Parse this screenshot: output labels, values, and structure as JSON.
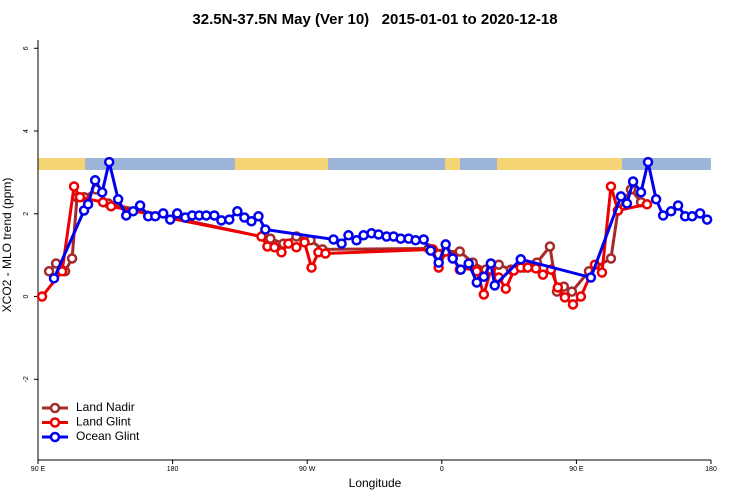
{
  "chart_data": {
    "type": "line",
    "title": "32.5N-37.5N May (Ver 10)   2015-01-01 to 2020-12-18",
    "xlabel": "Longitude",
    "ylabel": "XCO2 - MLO trend (ppm)",
    "xlim": [
      90,
      540
    ],
    "ylim": [
      -3.95,
      6.2
    ],
    "xticks": [
      {
        "value": 90,
        "label": "90 E"
      },
      180,
      {
        "value": 270,
        "label": "90 W"
      },
      {
        "value": 360,
        "label": "0"
      },
      {
        "value": 450,
        "label": "90 E"
      },
      {
        "value": 540,
        "label": "180"
      }
    ],
    "yticks": [
      -2,
      0,
      2,
      4,
      6
    ],
    "legend": "lower left",
    "series": [
      {
        "name": "Land Nadir",
        "color": "#a52a2a",
        "x": [
          97.4,
          102.1,
          108.1,
          112.8,
          116.1,
          120.8,
          128.8,
          137,
          245.4,
          254.1,
          262.8,
          272.2,
          280.2,
          351.2,
          362.6,
          372,
          380.7,
          389.4,
          398.1,
          406.2,
          414.9,
          423.6,
          432.3,
          437,
          441.6,
          447,
          458.4,
          473.1,
          477.8,
          486.5,
          493.2
        ],
        "values": [
          0.61,
          0.8,
          0.61,
          0.92,
          2.4,
          2.4,
          2.59,
          2.25,
          1.4,
          1.28,
          1.45,
          1.36,
          1.14,
          1.16,
          1.09,
          1.09,
          0.82,
          0.65,
          0.77,
          0.65,
          0.7,
          0.82,
          1.21,
          0.12,
          0.24,
          0.12,
          0.61,
          0.92,
          2.08,
          2.59,
          2.28
        ]
      },
      {
        "name": "Land Glint",
        "color": "#ee0000",
        "x": [
          92.7,
          106.1,
          114.1,
          118.1,
          133.5,
          138.9,
          239.4,
          243.4,
          248.1,
          252.8,
          257.4,
          262.8,
          268.2,
          272.9,
          277.5,
          282.2,
          353.9,
          357.9,
          362.6,
          367.3,
          372,
          378,
          383.4,
          388.1,
          392.8,
          398.1,
          402.8,
          408.2,
          412.8,
          417.5,
          422.9,
          427.6,
          433,
          437.6,
          442.3,
          447.7,
          453,
          462.4,
          467.1,
          473.1,
          477.8,
          497.2
        ],
        "values": [
          0,
          0.61,
          2.66,
          2.4,
          2.28,
          2.18,
          1.45,
          1.21,
          1.19,
          1.07,
          1.28,
          1.19,
          1.31,
          0.7,
          1.07,
          1.04,
          1.14,
          0.7,
          1.09,
          0.94,
          0.65,
          0.75,
          0.61,
          0.05,
          0.65,
          0.46,
          0.19,
          0.63,
          0.7,
          0.7,
          0.68,
          0.53,
          0.65,
          0.22,
          -0.02,
          -0.19,
          0,
          0.77,
          0.58,
          2.66,
          2.08,
          2.23
        ]
      },
      {
        "name": "Ocean Glint",
        "color": "#0000ee",
        "x": [
          100.7,
          120.8,
          123.5,
          128.2,
          132.9,
          137.6,
          143.6,
          149,
          153.6,
          158.3,
          163.7,
          168.4,
          173.7,
          178.4,
          183.1,
          188.5,
          193.1,
          197.8,
          202.5,
          207.9,
          212.6,
          217.9,
          223.3,
          228,
          232.7,
          237.4,
          242,
          287.6,
          293,
          297.6,
          303,
          307.7,
          313,
          317.7,
          323.1,
          327.8,
          332.5,
          337.8,
          342.5,
          347.9,
          352.6,
          357.9,
          362.6,
          367.3,
          372.7,
          378,
          383.4,
          388.1,
          392.8,
          395.4,
          412.8,
          459.7,
          479.8,
          483.8,
          487.9,
          493.2,
          497.9,
          503.3,
          508,
          513.3,
          518,
          522.7,
          527.4,
          532.7,
          537.4
        ],
        "values": [
          0.44,
          2.08,
          2.23,
          2.81,
          2.52,
          3.25,
          2.35,
          1.96,
          2.06,
          2.2,
          1.94,
          1.94,
          2.01,
          1.86,
          2.01,
          1.91,
          1.96,
          1.96,
          1.96,
          1.96,
          1.84,
          1.86,
          2.06,
          1.91,
          1.82,
          1.94,
          1.62,
          1.38,
          1.28,
          1.48,
          1.36,
          1.48,
          1.53,
          1.5,
          1.45,
          1.45,
          1.4,
          1.4,
          1.36,
          1.38,
          1.11,
          0.82,
          1.26,
          0.92,
          0.65,
          0.8,
          0.34,
          0.48,
          0.8,
          0.27,
          0.9,
          0.46,
          2.42,
          2.25,
          2.78,
          2.52,
          3.25,
          2.35,
          1.96,
          2.06,
          2.2,
          1.94,
          1.94,
          2.01,
          1.86
        ]
      }
    ]
  }
}
